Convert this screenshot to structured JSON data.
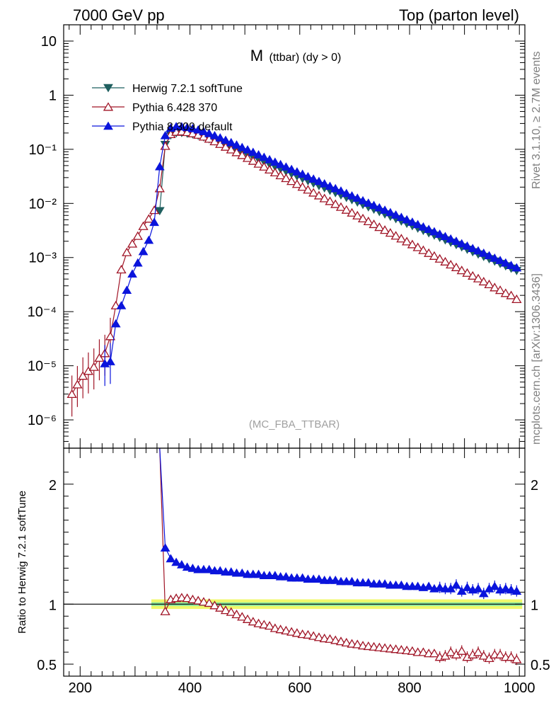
{
  "header": {
    "left": "7000 GeV pp",
    "right": "Top (parton level)"
  },
  "side_labels": {
    "top": "Rivet 3.1.10, ≥ 2.7M events",
    "bottom": "mcplots.cern.ch [arXiv:1306.3436]"
  },
  "plot_title": {
    "main": "M",
    "sub": "(ttbar) (dy > 0)"
  },
  "watermark": "(MC_FBA_TTBAR)",
  "colors": {
    "herwig": "#1f5f5f",
    "pythia6": "#a01426",
    "pythia8": "#0a14dc",
    "band_inner": "#88e8a0",
    "band_outer": "#f0f86a"
  },
  "chart_data": [
    {
      "type": "line",
      "panel": "main",
      "yscale": "log",
      "xlim": [
        170,
        1010
      ],
      "ylim": [
        3e-07,
        20
      ],
      "yticks": [
        {
          "value": 10,
          "label": "10"
        },
        {
          "value": 1,
          "label": "1"
        },
        {
          "value": 0.1,
          "label": "10⁻¹"
        },
        {
          "value": 0.01,
          "label": "10⁻²"
        },
        {
          "value": 0.001,
          "label": "10⁻³"
        },
        {
          "value": 0.0001,
          "label": "10⁻⁴"
        },
        {
          "value": 1e-05,
          "label": "10⁻⁵"
        },
        {
          "value": 1e-06,
          "label": "10⁻⁶"
        }
      ],
      "legend_position": "top-left",
      "series": [
        {
          "name": "Herwig 7.2.1 softTune",
          "color": "#1f5f5f",
          "marker": "triangle-down-filled",
          "x": [
            345,
            355,
            365,
            375,
            385,
            395,
            405,
            415,
            425,
            435,
            445,
            455,
            465,
            475,
            485,
            495,
            505,
            515,
            525,
            535,
            545,
            555,
            565,
            575,
            585,
            595,
            605,
            615,
            625,
            635,
            645,
            655,
            665,
            675,
            685,
            695,
            705,
            715,
            725,
            735,
            745,
            755,
            765,
            775,
            785,
            795,
            805,
            815,
            825,
            835,
            845,
            855,
            865,
            875,
            885,
            895,
            905,
            915,
            925,
            935,
            945,
            955,
            965,
            975,
            985,
            995
          ],
          "y": [
            0.0073,
            0.122,
            0.183,
            0.2,
            0.202,
            0.197,
            0.19,
            0.18,
            0.168,
            0.155,
            0.142,
            0.129,
            0.117,
            0.106,
            0.0963,
            0.0872,
            0.0789,
            0.0714,
            0.0645,
            0.0583,
            0.0527,
            0.0476,
            0.0431,
            0.0389,
            0.0352,
            0.0318,
            0.0287,
            0.026,
            0.0235,
            0.0212,
            0.0192,
            0.0173,
            0.0157,
            0.0142,
            0.0128,
            0.0116,
            0.0105,
            0.00948,
            0.00857,
            0.00775,
            0.00701,
            0.00634,
            0.00573,
            0.00519,
            0.00469,
            0.00424,
            0.00384,
            0.00347,
            0.00314,
            0.00284,
            0.00257,
            0.00233,
            0.0021,
            0.0019,
            0.00172,
            0.00156,
            0.00141,
            0.00127,
            0.00115,
            0.00104,
            0.000942,
            0.000852,
            0.00077,
            0.000697,
            0.00063,
            0.00057
          ]
        },
        {
          "name": "Pythia 6.428 370",
          "color": "#a01426",
          "marker": "triangle-up-open",
          "x": [
            185,
            195,
            205,
            215,
            225,
            235,
            245,
            255,
            265,
            275,
            285,
            295,
            305,
            315,
            325,
            335,
            345,
            355,
            365,
            375,
            385,
            395,
            405,
            415,
            425,
            435,
            445,
            455,
            465,
            475,
            485,
            495,
            505,
            515,
            525,
            535,
            545,
            555,
            565,
            575,
            585,
            595,
            605,
            615,
            625,
            635,
            645,
            655,
            665,
            675,
            685,
            695,
            705,
            715,
            725,
            735,
            745,
            755,
            765,
            775,
            785,
            795,
            805,
            815,
            825,
            835,
            845,
            855,
            865,
            875,
            885,
            895,
            905,
            915,
            925,
            935,
            945,
            955,
            965,
            975,
            985,
            995
          ],
          "y": [
            3e-06,
            4.5e-06,
            6.5e-06,
            8e-06,
            9.5e-06,
            1.4e-05,
            1.7e-05,
            3.5e-05,
            0.00013,
            0.0006,
            0.00125,
            0.0018,
            0.0025,
            0.0038,
            0.0052,
            0.0075,
            0.019,
            0.115,
            0.19,
            0.21,
            0.213,
            0.207,
            0.197,
            0.185,
            0.171,
            0.156,
            0.14,
            0.125,
            0.111,
            0.099,
            0.088,
            0.078,
            0.069,
            0.061,
            0.054,
            0.0477,
            0.0421,
            0.0373,
            0.033,
            0.0292,
            0.0258,
            0.0228,
            0.0202,
            0.0179,
            0.0158,
            0.014,
            0.0124,
            0.011,
            0.00971,
            0.0086,
            0.00761,
            0.00673,
            0.00596,
            0.00527,
            0.00467,
            0.00413,
            0.00365,
            0.00323,
            0.00286,
            0.00253,
            0.00224,
            0.00198,
            0.00175,
            0.00155,
            0.00137,
            0.00121,
            0.00107,
            0.00095,
            0.00084,
            0.00074,
            0.00066,
            0.00058,
            0.00052,
            0.00046,
            0.00041,
            0.00036,
            0.00032,
            0.00028,
            0.00025,
            0.00022,
            0.0002,
            0.00017
          ]
        },
        {
          "name": "Pythia 8.309 default",
          "color": "#0a14dc",
          "marker": "triangle-up-filled",
          "x": [
            245,
            255,
            265,
            275,
            285,
            295,
            305,
            315,
            325,
            335,
            345,
            355,
            365,
            375,
            385,
            395,
            405,
            415,
            425,
            435,
            445,
            455,
            465,
            475,
            485,
            495,
            505,
            515,
            525,
            535,
            545,
            555,
            565,
            575,
            585,
            595,
            605,
            615,
            625,
            635,
            645,
            655,
            665,
            675,
            685,
            695,
            705,
            715,
            725,
            735,
            745,
            755,
            765,
            775,
            785,
            795,
            805,
            815,
            825,
            835,
            845,
            855,
            865,
            875,
            885,
            895,
            905,
            915,
            925,
            935,
            945,
            955,
            965,
            975,
            985,
            995
          ],
          "y": [
            1.1e-05,
            1.2e-05,
            6e-05,
            0.00013,
            0.00025,
            0.0005,
            0.0008,
            0.0013,
            0.0021,
            0.0045,
            0.048,
            0.18,
            0.248,
            0.264,
            0.263,
            0.255,
            0.243,
            0.23,
            0.214,
            0.197,
            0.18,
            0.164,
            0.148,
            0.134,
            0.121,
            0.109,
            0.0985,
            0.0887,
            0.0798,
            0.0719,
            0.0648,
            0.0584,
            0.0527,
            0.0475,
            0.0428,
            0.0386,
            0.0349,
            0.0315,
            0.0284,
            0.0257,
            0.0232,
            0.0209,
            0.0189,
            0.0171,
            0.0154,
            0.0139,
            0.0126,
            0.0113,
            0.0102,
            0.00925,
            0.00836,
            0.00755,
            0.00682,
            0.00616,
            0.00556,
            0.00502,
            0.00454,
            0.0041,
            0.0037,
            0.00334,
            0.00302,
            0.00272,
            0.00246,
            0.00222,
            0.00201,
            0.00181,
            0.00164,
            0.00148,
            0.00134,
            0.00121,
            0.00109,
            0.00098,
            0.00089,
            0.0008,
            0.00072,
            0.00065
          ]
        }
      ]
    },
    {
      "type": "line",
      "panel": "ratio",
      "ylabel": "Ratio to Herwig 7.2.1 softTune",
      "xlim": [
        170,
        1010
      ],
      "ylim": [
        0.4,
        2.3
      ],
      "xticks": [
        200,
        400,
        600,
        800,
        1000
      ],
      "yticks": [
        {
          "value": 2,
          "label": "2"
        },
        {
          "value": 1,
          "label": "1"
        },
        {
          "value": 0.5,
          "label": "0.5"
        }
      ],
      "reference_line": 1,
      "band": {
        "x": [
          340,
          1000
        ],
        "inner": [
          0.985,
          1.015
        ],
        "outer": [
          0.96,
          1.04
        ]
      },
      "series": [
        {
          "name": "Pythia 6.428 370",
          "color": "#a01426",
          "marker": "triangle-up-open",
          "x": [
            355,
            365,
            375,
            385,
            395,
            405,
            415,
            425,
            435,
            445,
            455,
            465,
            475,
            485,
            495,
            505,
            515,
            525,
            535,
            545,
            555,
            565,
            575,
            585,
            595,
            605,
            615,
            625,
            635,
            645,
            655,
            665,
            675,
            685,
            695,
            705,
            715,
            725,
            735,
            745,
            755,
            765,
            775,
            785,
            795,
            805,
            815,
            825,
            835,
            845,
            855,
            865,
            875,
            885,
            895,
            905,
            915,
            925,
            935,
            945,
            955,
            965,
            975,
            985,
            995
          ],
          "y": [
            0.94,
            1.04,
            1.05,
            1.055,
            1.05,
            1.04,
            1.03,
            1.02,
            1.01,
            0.99,
            0.97,
            0.95,
            0.935,
            0.915,
            0.895,
            0.875,
            0.855,
            0.84,
            0.83,
            0.82,
            0.8,
            0.79,
            0.78,
            0.77,
            0.76,
            0.75,
            0.745,
            0.735,
            0.725,
            0.715,
            0.71,
            0.7,
            0.69,
            0.68,
            0.67,
            0.665,
            0.655,
            0.65,
            0.645,
            0.64,
            0.635,
            0.63,
            0.625,
            0.62,
            0.615,
            0.61,
            0.6,
            0.6,
            0.59,
            0.59,
            0.56,
            0.57,
            0.6,
            0.58,
            0.61,
            0.56,
            0.58,
            0.6,
            0.57,
            0.55,
            0.58,
            0.58,
            0.56,
            0.56,
            0.54
          ]
        },
        {
          "name": "Pythia 8.309 default",
          "color": "#0a14dc",
          "marker": "triangle-up-filled",
          "x": [
            355,
            365,
            375,
            385,
            395,
            405,
            415,
            425,
            435,
            445,
            455,
            465,
            475,
            485,
            495,
            505,
            515,
            525,
            535,
            545,
            555,
            565,
            575,
            585,
            595,
            605,
            615,
            625,
            635,
            645,
            655,
            665,
            675,
            685,
            695,
            705,
            715,
            725,
            735,
            745,
            755,
            765,
            775,
            785,
            795,
            805,
            815,
            825,
            835,
            845,
            855,
            865,
            875,
            885,
            895,
            905,
            915,
            925,
            935,
            945,
            955,
            965,
            975,
            985,
            995
          ],
          "y": [
            1.47,
            1.38,
            1.35,
            1.33,
            1.31,
            1.3,
            1.29,
            1.29,
            1.29,
            1.28,
            1.28,
            1.27,
            1.27,
            1.26,
            1.26,
            1.25,
            1.25,
            1.25,
            1.24,
            1.24,
            1.24,
            1.23,
            1.23,
            1.22,
            1.22,
            1.22,
            1.21,
            1.21,
            1.21,
            1.2,
            1.2,
            1.2,
            1.19,
            1.19,
            1.19,
            1.18,
            1.18,
            1.18,
            1.17,
            1.17,
            1.17,
            1.16,
            1.16,
            1.16,
            1.15,
            1.15,
            1.15,
            1.14,
            1.15,
            1.13,
            1.14,
            1.13,
            1.13,
            1.16,
            1.11,
            1.14,
            1.12,
            1.13,
            1.09,
            1.13,
            1.15,
            1.12,
            1.13,
            1.12,
            1.11
          ]
        }
      ]
    }
  ]
}
